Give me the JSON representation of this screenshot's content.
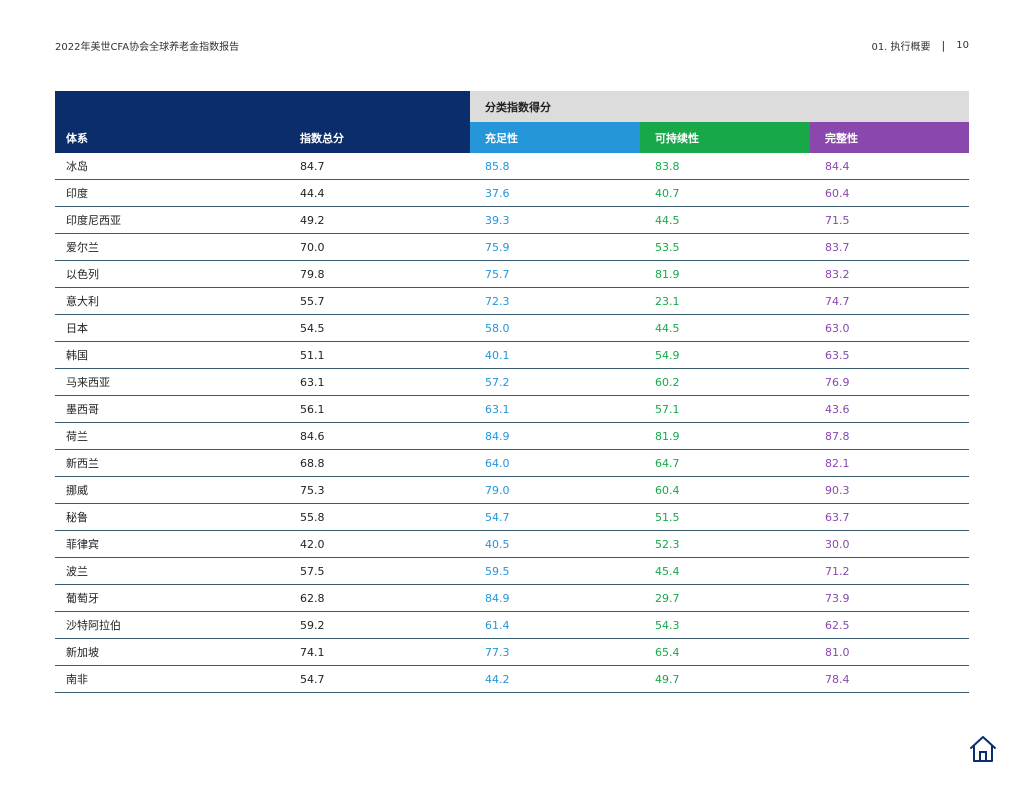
{
  "header": {
    "title": "2022年美世CFA协会全球养老金指数报告",
    "section": "01. 执行概要",
    "separator": "|",
    "page_number": "10"
  },
  "table": {
    "group_header": "分类指数得分",
    "columns": {
      "system": "体系",
      "total": "指数总分",
      "adequacy": "充足性",
      "sustainability": "可持续性",
      "integrity": "完整性"
    },
    "rows": [
      {
        "system": "冰岛",
        "total": "84.7",
        "adequacy": "85.8",
        "sustainability": "83.8",
        "integrity": "84.4"
      },
      {
        "system": "印度",
        "total": "44.4",
        "adequacy": "37.6",
        "sustainability": "40.7",
        "integrity": "60.4"
      },
      {
        "system": "印度尼西亚",
        "total": "49.2",
        "adequacy": "39.3",
        "sustainability": "44.5",
        "integrity": "71.5"
      },
      {
        "system": "爱尔兰",
        "total": "70.0",
        "adequacy": "75.9",
        "sustainability": "53.5",
        "integrity": "83.7"
      },
      {
        "system": "以色列",
        "total": "79.8",
        "adequacy": "75.7",
        "sustainability": "81.9",
        "integrity": "83.2"
      },
      {
        "system": "意大利",
        "total": "55.7",
        "adequacy": "72.3",
        "sustainability": "23.1",
        "integrity": "74.7"
      },
      {
        "system": "日本",
        "total": "54.5",
        "adequacy": "58.0",
        "sustainability": "44.5",
        "integrity": "63.0"
      },
      {
        "system": "韩国",
        "total": "51.1",
        "adequacy": "40.1",
        "sustainability": "54.9",
        "integrity": "63.5"
      },
      {
        "system": "马来西亚",
        "total": "63.1",
        "adequacy": "57.2",
        "sustainability": "60.2",
        "integrity": "76.9"
      },
      {
        "system": "墨西哥",
        "total": "56.1",
        "adequacy": "63.1",
        "sustainability": "57.1",
        "integrity": "43.6"
      },
      {
        "system": "荷兰",
        "total": "84.6",
        "adequacy": "84.9",
        "sustainability": "81.9",
        "integrity": "87.8"
      },
      {
        "system": "新西兰",
        "total": "68.8",
        "adequacy": "64.0",
        "sustainability": "64.7",
        "integrity": "82.1"
      },
      {
        "system": "挪威",
        "total": "75.3",
        "adequacy": "79.0",
        "sustainability": "60.4",
        "integrity": "90.3"
      },
      {
        "system": "秘鲁",
        "total": "55.8",
        "adequacy": "54.7",
        "sustainability": "51.5",
        "integrity": "63.7"
      },
      {
        "system": "菲律宾",
        "total": "42.0",
        "adequacy": "40.5",
        "sustainability": "52.3",
        "integrity": "30.0"
      },
      {
        "system": "波兰",
        "total": "57.5",
        "adequacy": "59.5",
        "sustainability": "45.4",
        "integrity": "71.2"
      },
      {
        "system": "葡萄牙",
        "total": "62.8",
        "adequacy": "84.9",
        "sustainability": "29.7",
        "integrity": "73.9"
      },
      {
        "system": "沙特阿拉伯",
        "total": "59.2",
        "adequacy": "61.4",
        "sustainability": "54.3",
        "integrity": "62.5"
      },
      {
        "system": "新加坡",
        "total": "74.1",
        "adequacy": "77.3",
        "sustainability": "65.4",
        "integrity": "81.0"
      },
      {
        "system": "南非",
        "total": "54.7",
        "adequacy": "44.2",
        "sustainability": "49.7",
        "integrity": "78.4"
      }
    ]
  },
  "colors": {
    "navy": "#0c2d6b",
    "adequacy": "#2596d8",
    "sustainability": "#18a84a",
    "integrity": "#8a48ae",
    "group_header_bg": "#dcdcdc"
  },
  "icons": {
    "home": "home-icon"
  }
}
